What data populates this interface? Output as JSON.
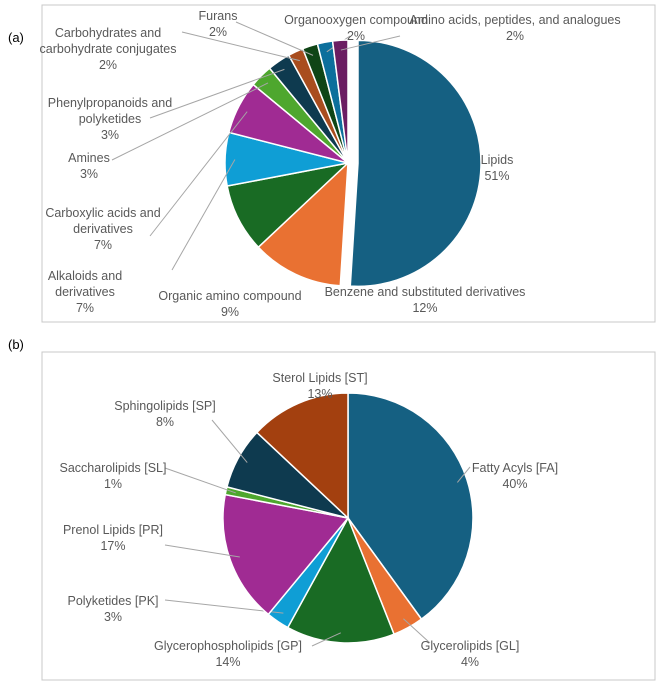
{
  "chart_data": [
    {
      "type": "pie",
      "label": "(a)",
      "categories": [
        "Lipids",
        "Benzene and substituted derivatives",
        "Organic amino compound",
        "Alkaloids and derivatives",
        "Carboxylic acids and derivatives",
        "Amines",
        "Phenylpropanoids and polyketides",
        "Carbohydrates and carbohydrate conjugates",
        "Furans",
        "Organooxygen compound",
        "Amino acids, peptides, and analogues"
      ],
      "values": [
        51,
        12,
        9,
        7,
        7,
        3,
        3,
        2,
        2,
        2,
        2
      ],
      "value_labels": [
        "51%",
        "12%",
        "9%",
        "7%",
        "7%",
        "3%",
        "3%",
        "2%",
        "2%",
        "2%",
        "2%"
      ],
      "colors": [
        "#156082",
        "#e97132",
        "#196b24",
        "#0f9ed5",
        "#a02b93",
        "#4ea72e",
        "#0e3a4f",
        "#a94d1e",
        "#0f4516",
        "#0c6f9c",
        "#6b1d62"
      ]
    },
    {
      "type": "pie",
      "label": "(b)",
      "categories": [
        "Fatty Acyls [FA]",
        "Glycerolipids [GL]",
        "Glycerophospholipids [GP]",
        "Polyketides [PK]",
        "Prenol Lipids [PR]",
        "Saccharolipids [SL]",
        "Sphingolipids [SP]",
        "Sterol Lipids [ST]"
      ],
      "values": [
        40,
        4,
        14,
        3,
        17,
        1,
        8,
        13
      ],
      "value_labels": [
        "40%",
        "4%",
        "14%",
        "3%",
        "17%",
        "1%",
        "8%",
        "13%"
      ],
      "colors": [
        "#156082",
        "#e97132",
        "#196b24",
        "#0f9ed5",
        "#a02b93",
        "#4ea72e",
        "#0e3a4f",
        "#a3400f"
      ]
    }
  ]
}
